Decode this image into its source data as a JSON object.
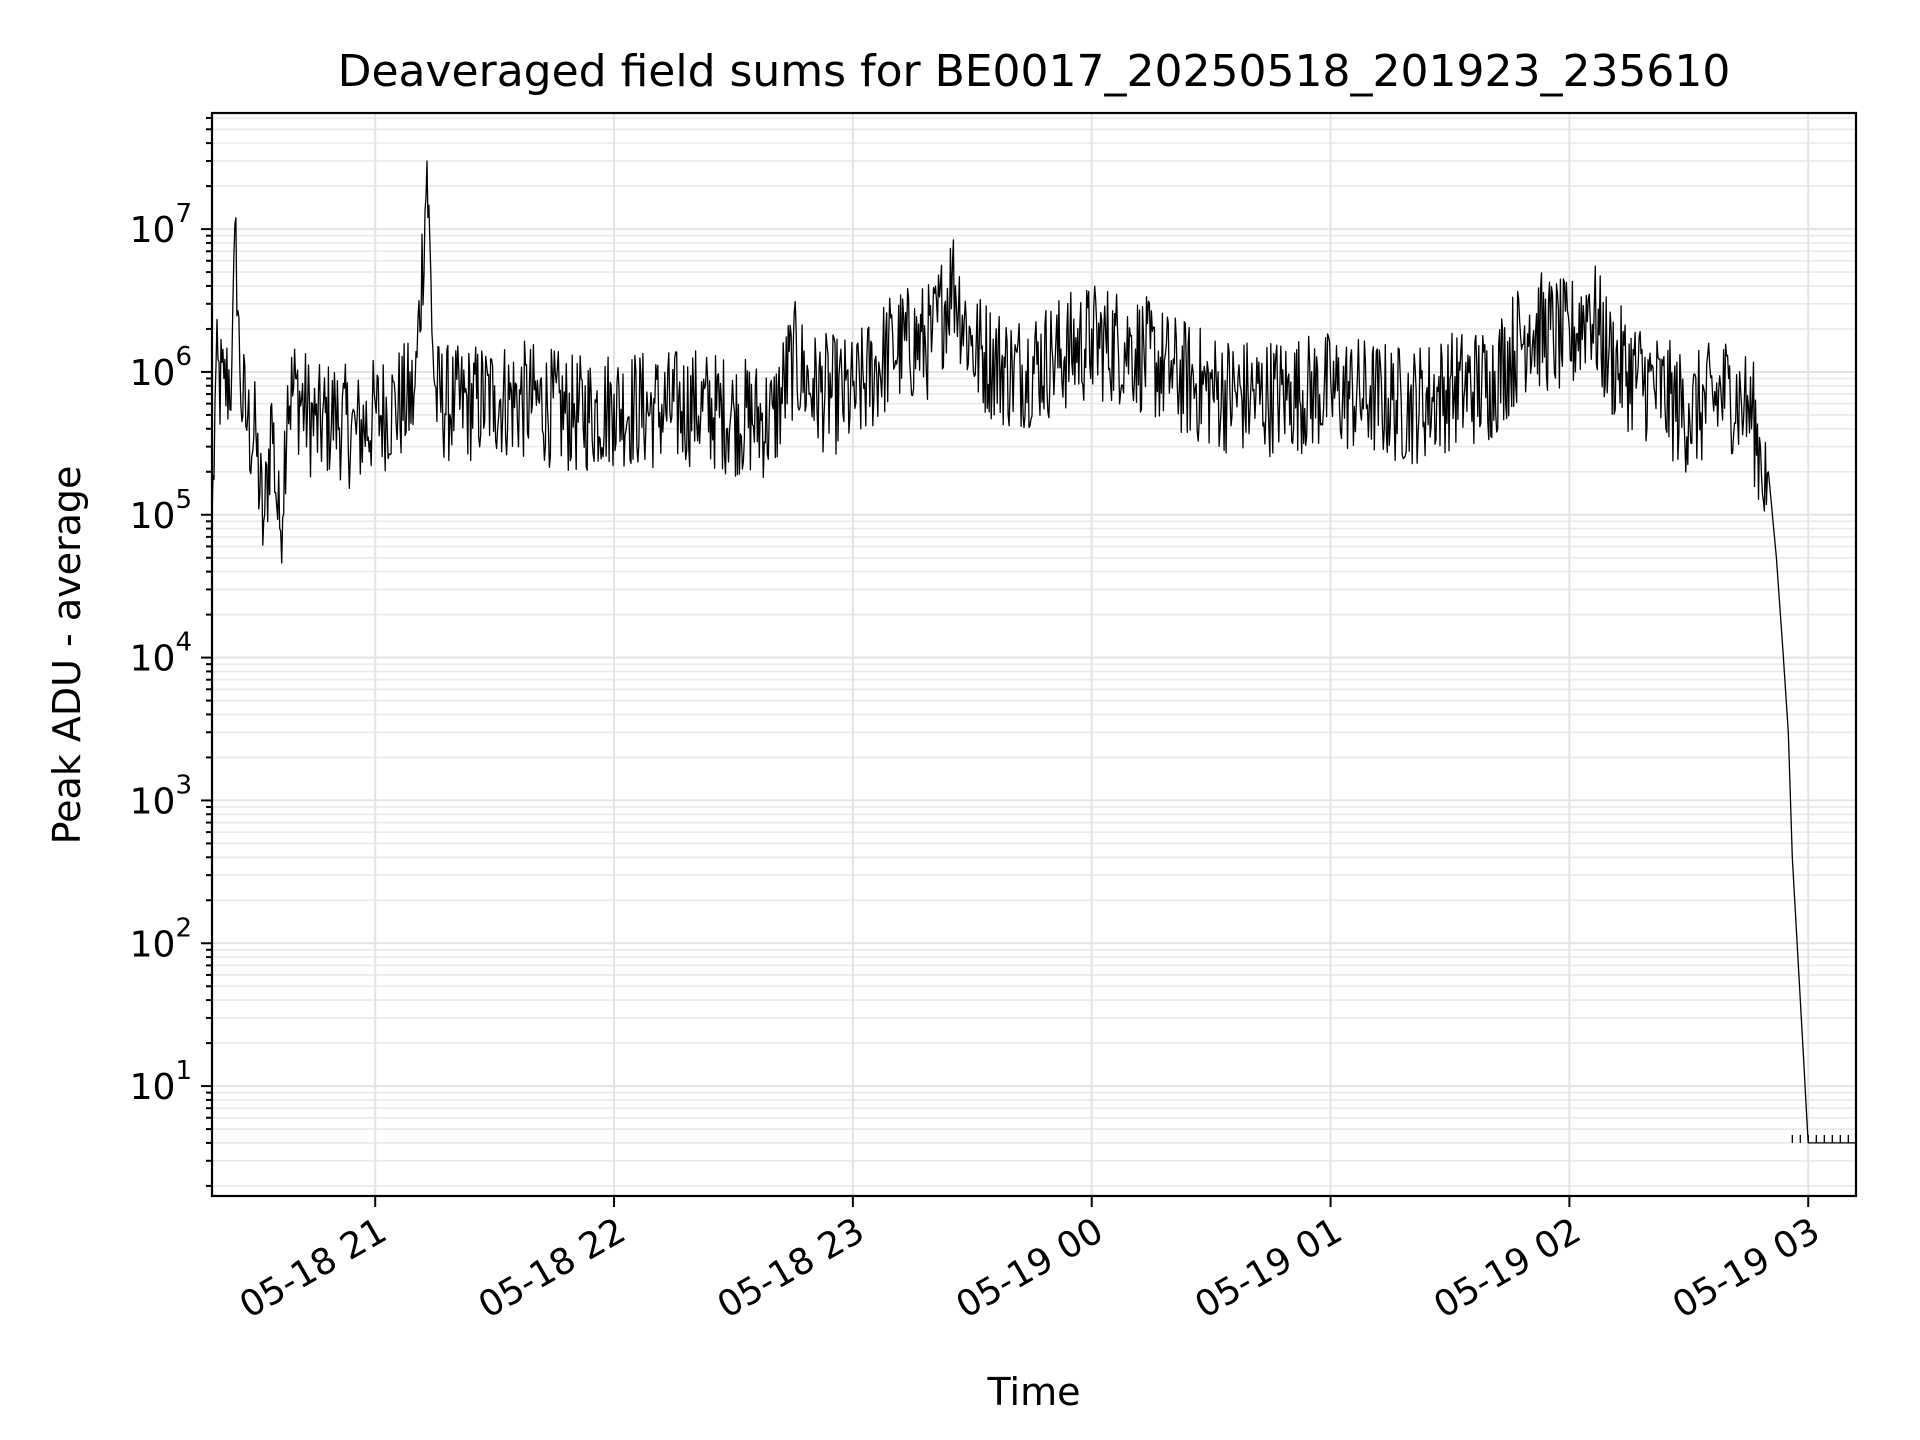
{
  "chart_data": {
    "type": "line",
    "title": "Deaveraged field sums for BE0017_20250518_201923_235610",
    "xlabel": "Time",
    "ylabel": "Peak ADU - average",
    "yscale": "log",
    "grid": true,
    "ylim": [
      1.7,
      65000000
    ],
    "xlim": [
      "05-18 20:19",
      "05-19 03:12"
    ],
    "x_tick_labels": [
      "05-18 21",
      "05-18 22",
      "05-18 23",
      "05-19 00",
      "05-19 01",
      "05-19 02",
      "05-19 03"
    ],
    "x_ticks": [
      "05-18 21:00",
      "05-18 22:00",
      "05-18 23:00",
      "05-19 00:00",
      "05-19 01:00",
      "05-19 02:00",
      "05-19 03:00"
    ],
    "y_ticks": [
      {
        "value": 10,
        "base": "10",
        "exp": "1"
      },
      {
        "value": 100,
        "base": "10",
        "exp": "2"
      },
      {
        "value": 1000,
        "base": "10",
        "exp": "3"
      },
      {
        "value": 10000,
        "base": "10",
        "exp": "4"
      },
      {
        "value": 100000,
        "base": "10",
        "exp": "5"
      },
      {
        "value": 1000000,
        "base": "10",
        "exp": "6"
      },
      {
        "value": 10000000,
        "base": "10",
        "exp": "7"
      }
    ],
    "series": [
      {
        "color": "#000000",
        "x": [
          "05-18 20:19",
          "05-18 20:20",
          "05-18 20:22",
          "05-18 20:24",
          "05-18 20:25",
          "05-18 20:26",
          "05-18 20:28",
          "05-18 20:30",
          "05-18 20:32",
          "05-18 20:34",
          "05-18 20:36",
          "05-18 20:38",
          "05-18 20:40",
          "05-18 20:45",
          "05-18 20:50",
          "05-18 20:55",
          "05-18 21:00",
          "05-18 21:05",
          "05-18 21:10",
          "05-18 21:13",
          "05-18 21:15",
          "05-18 21:20",
          "05-18 21:30",
          "05-18 21:40",
          "05-18 21:50",
          "05-18 22:00",
          "05-18 22:10",
          "05-18 22:20",
          "05-18 22:30",
          "05-18 22:40",
          "05-18 22:45",
          "05-18 22:50",
          "05-18 23:00",
          "05-18 23:10",
          "05-18 23:20",
          "05-18 23:25",
          "05-18 23:30",
          "05-18 23:40",
          "05-18 23:50",
          "05-19 00:00",
          "05-19 00:10",
          "05-19 00:20",
          "05-19 00:30",
          "05-19 00:40",
          "05-19 00:50",
          "05-19 01:00",
          "05-19 01:10",
          "05-19 01:20",
          "05-19 01:30",
          "05-19 01:40",
          "05-19 01:50",
          "05-19 02:00",
          "05-19 02:05",
          "05-19 02:10",
          "05-19 02:20",
          "05-19 02:30",
          "05-19 02:40",
          "05-19 02:44",
          "05-19 02:46",
          "05-19 02:48",
          "05-19 02:50",
          "05-19 02:52",
          "05-19 02:54",
          "05-19 02:55",
          "05-19 02:56",
          "05-19 03:00",
          "05-19 03:05",
          "05-19 03:12"
        ],
        "y": [
          90000,
          1100000,
          900000,
          1200000,
          12000000,
          1000000,
          500000,
          400000,
          90000,
          600000,
          80000,
          800000,
          900000,
          500000,
          600000,
          450000,
          600000,
          700000,
          800000,
          30000000,
          800000,
          700000,
          800000,
          750000,
          600000,
          700000,
          650000,
          700000,
          600000,
          550000,
          1500000,
          900000,
          800000,
          1800000,
          2000000,
          5500000,
          1800000,
          1200000,
          1500000,
          2000000,
          1800000,
          1200000,
          900000,
          800000,
          850000,
          900000,
          800000,
          700000,
          900000,
          1000000,
          2500000,
          2000000,
          3500000,
          1500000,
          1000000,
          600000,
          900000,
          700000,
          600000,
          300000,
          200000,
          50000,
          8000,
          3000,
          400,
          4,
          4,
          4
        ]
      }
    ]
  }
}
